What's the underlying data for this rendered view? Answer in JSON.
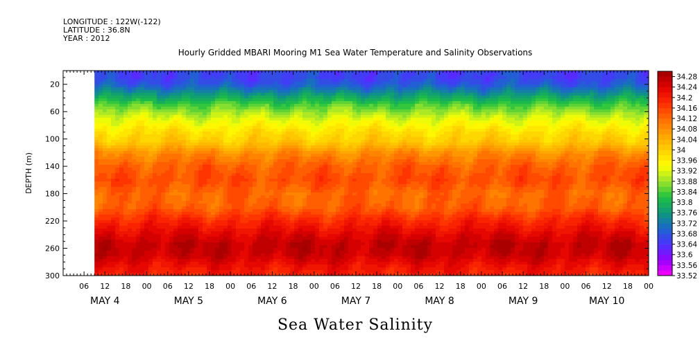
{
  "header": {
    "longitude": "LONGITUDE : 122W(-122)",
    "latitude": "LATITUDE : 36.8N",
    "year": "YEAR : 2012"
  },
  "chart_data": {
    "type": "heatmap",
    "title": "Hourly Gridded MBARI Mooring M1 Sea Water Temperature and Salinity Observations",
    "bottom_title": "Sea Water Salinity",
    "ylabel": "DEPTH (m)",
    "xlabel": "",
    "x_range_hours": [
      0,
      168
    ],
    "data_start_hour": 9,
    "ylim": [
      300,
      0
    ],
    "y_inverted": true,
    "y_ticks": [
      20,
      60,
      100,
      140,
      180,
      220,
      260,
      300
    ],
    "x_hour_ticks": [
      {
        "h": 6,
        "label": "06"
      },
      {
        "h": 12,
        "label": "12"
      },
      {
        "h": 18,
        "label": "18"
      },
      {
        "h": 24,
        "label": "00"
      },
      {
        "h": 30,
        "label": "06"
      },
      {
        "h": 36,
        "label": "12"
      },
      {
        "h": 42,
        "label": "18"
      },
      {
        "h": 48,
        "label": "00"
      },
      {
        "h": 54,
        "label": "06"
      },
      {
        "h": 60,
        "label": "12"
      },
      {
        "h": 66,
        "label": "18"
      },
      {
        "h": 72,
        "label": "00"
      },
      {
        "h": 78,
        "label": "06"
      },
      {
        "h": 84,
        "label": "12"
      },
      {
        "h": 90,
        "label": "18"
      },
      {
        "h": 96,
        "label": "00"
      },
      {
        "h": 102,
        "label": "06"
      },
      {
        "h": 108,
        "label": "12"
      },
      {
        "h": 114,
        "label": "18"
      },
      {
        "h": 120,
        "label": "00"
      },
      {
        "h": 126,
        "label": "06"
      },
      {
        "h": 132,
        "label": "12"
      },
      {
        "h": 138,
        "label": "18"
      },
      {
        "h": 144,
        "label": "00"
      },
      {
        "h": 150,
        "label": "06"
      },
      {
        "h": 156,
        "label": "12"
      },
      {
        "h": 162,
        "label": "18"
      },
      {
        "h": 168,
        "label": "00"
      }
    ],
    "day_labels": [
      {
        "h": 12,
        "label": "MAY  4"
      },
      {
        "h": 36,
        "label": "MAY  5"
      },
      {
        "h": 60,
        "label": "MAY  6"
      },
      {
        "h": 84,
        "label": "MAY  7"
      },
      {
        "h": 108,
        "label": "MAY  8"
      },
      {
        "h": 132,
        "label": "MAY  9"
      },
      {
        "h": 156,
        "label": "MAY 10"
      }
    ],
    "colorbar": {
      "min": 33.52,
      "max": 34.3,
      "step": 0.02,
      "labels": [
        "34.28",
        "34.24",
        "34.2",
        "34.16",
        "34.12",
        "34.08",
        "34.04",
        "34",
        "33.96",
        "33.92",
        "33.88",
        "33.84",
        "33.8",
        "33.76",
        "33.72",
        "33.68",
        "33.64",
        "33.6",
        "33.56",
        "33.52"
      ],
      "colors": [
        "#ff00ff",
        "#9400ff",
        "#4b33ff",
        "#1a66cc",
        "#0e9a7a",
        "#1fc040",
        "#9be52b",
        "#ffff00",
        "#ffcf00",
        "#ffa000",
        "#ff6a00",
        "#ff2a00",
        "#e00000",
        "#a00000"
      ]
    },
    "depth_profile": [
      {
        "depth": 10,
        "value": 33.66
      },
      {
        "depth": 20,
        "value": 33.68
      },
      {
        "depth": 35,
        "value": 33.76
      },
      {
        "depth": 50,
        "value": 33.84
      },
      {
        "depth": 70,
        "value": 33.92
      },
      {
        "depth": 90,
        "value": 33.98
      },
      {
        "depth": 105,
        "value": 34.01
      },
      {
        "depth": 120,
        "value": 34.08
      },
      {
        "depth": 140,
        "value": 34.13
      },
      {
        "depth": 160,
        "value": 34.15
      },
      {
        "depth": 180,
        "value": 34.12
      },
      {
        "depth": 200,
        "value": 34.13
      },
      {
        "depth": 220,
        "value": 34.19
      },
      {
        "depth": 240,
        "value": 34.24
      },
      {
        "depth": 255,
        "value": 34.27
      },
      {
        "depth": 270,
        "value": 34.26
      },
      {
        "depth": 285,
        "value": 34.22
      },
      {
        "depth": 300,
        "value": 34.19
      }
    ]
  }
}
